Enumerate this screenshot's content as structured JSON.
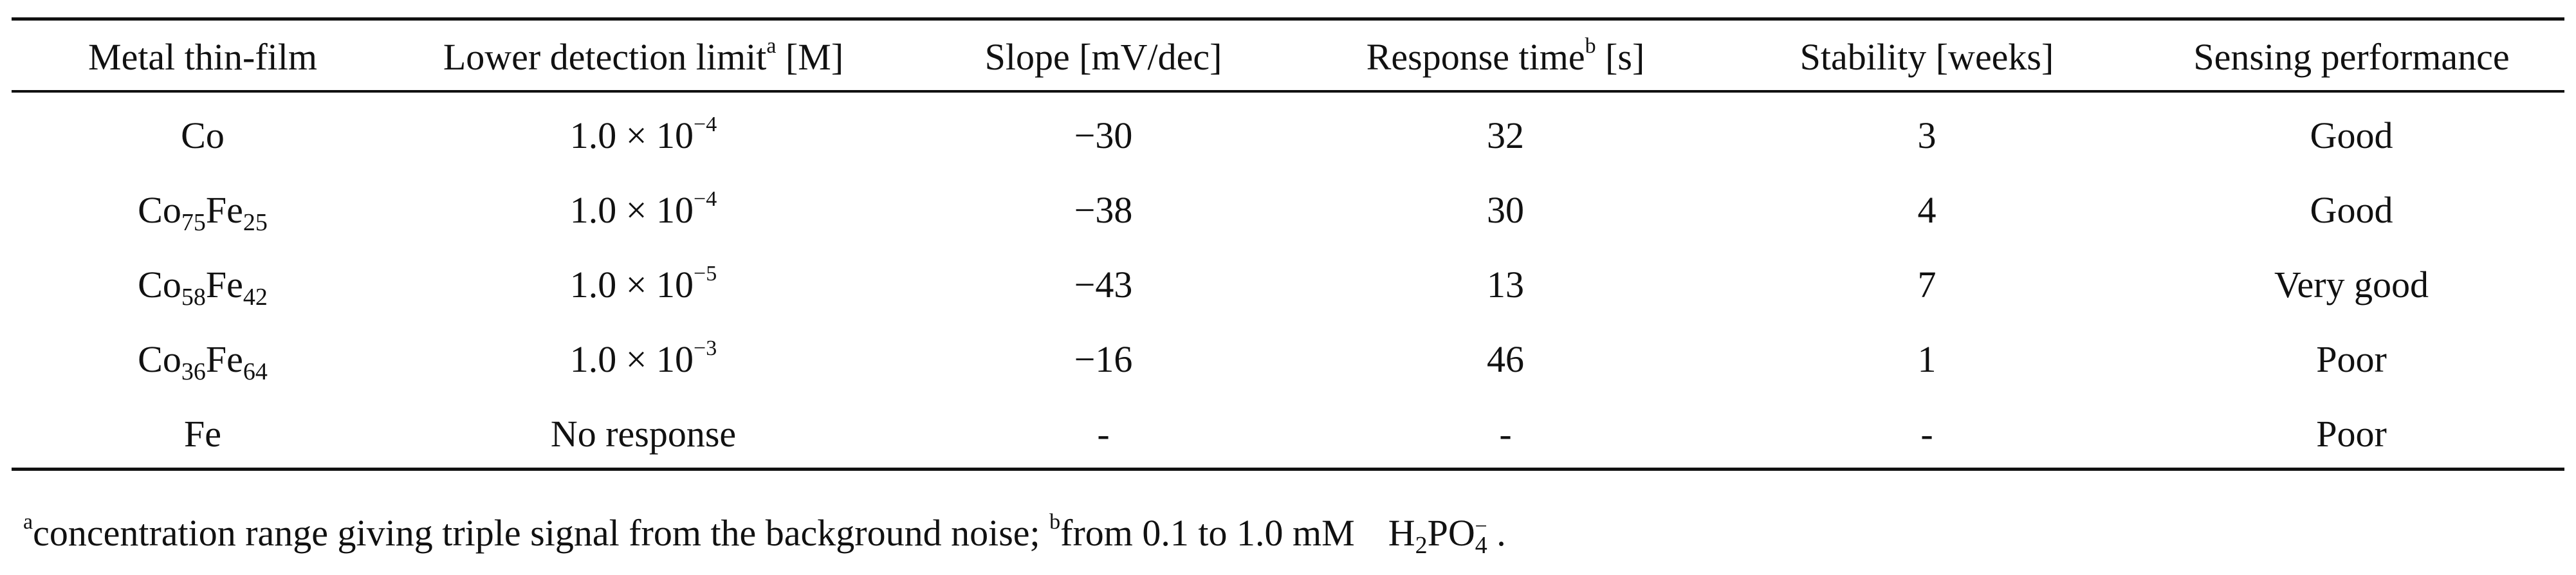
{
  "table": {
    "headers": [
      {
        "text": "Metal thin-film",
        "sup": "",
        "suffix": ""
      },
      {
        "text": "Lower detection limit",
        "sup": "a",
        "suffix": " [M]"
      },
      {
        "text": "Slope [mV/dec]",
        "sup": "",
        "suffix": ""
      },
      {
        "text": "Response time",
        "sup": "b",
        "suffix": " [s]"
      },
      {
        "text": "Stability [weeks]",
        "sup": "",
        "suffix": ""
      },
      {
        "text": "Sensing performance",
        "sup": "",
        "suffix": ""
      }
    ],
    "rows": [
      {
        "film": {
          "base": "Co",
          "sub1": "",
          "el2": "",
          "sub2": ""
        },
        "limit": {
          "mantissa": "1.0 × 10",
          "exponent": "−4",
          "text": ""
        },
        "slope": "−30",
        "response_time": "32",
        "stability": "3",
        "performance": "Good"
      },
      {
        "film": {
          "base": "Co",
          "sub1": "75",
          "el2": "Fe",
          "sub2": "25"
        },
        "limit": {
          "mantissa": "1.0 × 10",
          "exponent": "−4",
          "text": ""
        },
        "slope": "−38",
        "response_time": "30",
        "stability": "4",
        "performance": "Good"
      },
      {
        "film": {
          "base": "Co",
          "sub1": "58",
          "el2": "Fe",
          "sub2": "42"
        },
        "limit": {
          "mantissa": "1.0 × 10",
          "exponent": "−5",
          "text": ""
        },
        "slope": "−43",
        "response_time": "13",
        "stability": "7",
        "performance": "Very good"
      },
      {
        "film": {
          "base": "Co",
          "sub1": "36",
          "el2": "Fe",
          "sub2": "64"
        },
        "limit": {
          "mantissa": "1.0 × 10",
          "exponent": "−3",
          "text": ""
        },
        "slope": "−16",
        "response_time": "46",
        "stability": "1",
        "performance": "Poor"
      },
      {
        "film": {
          "base": "Fe",
          "sub1": "",
          "el2": "",
          "sub2": ""
        },
        "limit": {
          "mantissa": "",
          "exponent": "",
          "text": "No response"
        },
        "slope": "-",
        "response_time": "-",
        "stability": "-",
        "performance": "Poor"
      }
    ]
  },
  "footnote": {
    "a_marker": "a",
    "a_text": "concentration range giving triple signal from the background noise; ",
    "b_marker": "b",
    "b_text": "from 0.1 to 1.0 mM",
    "ion_h": "H",
    "ion_h_sub": "2",
    "ion_po": "PO",
    "ion_po_sub": "4",
    "ion_charge": "−",
    "end": " ."
  }
}
